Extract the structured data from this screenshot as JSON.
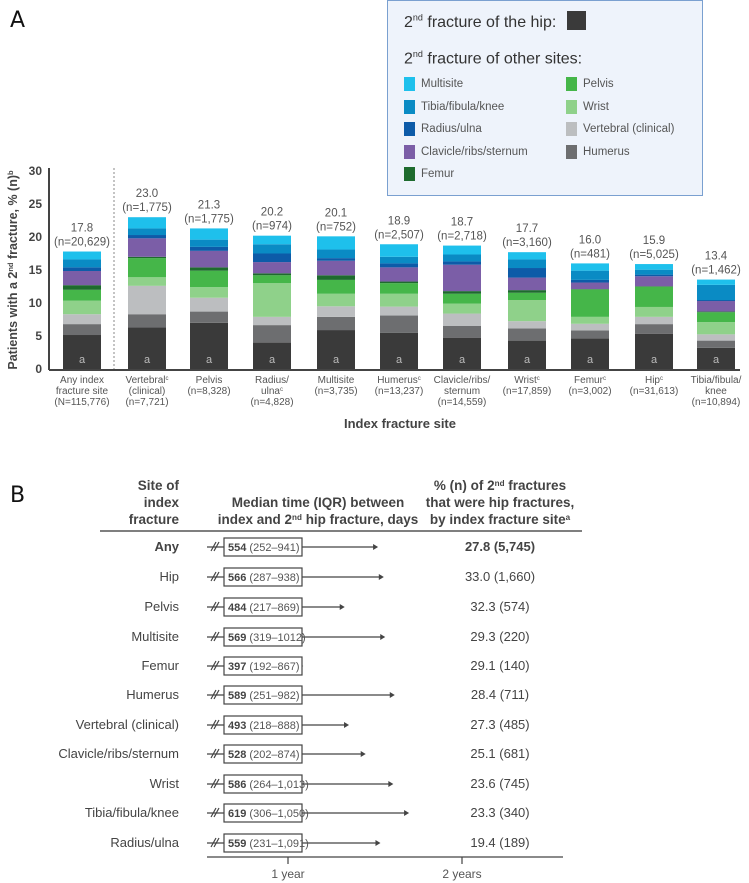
{
  "panel_a_letter": "A",
  "panel_b_letter": "B",
  "legend": {
    "hip_title_pre": "2",
    "hip_title_sup": "nd",
    "hip_title_post": " fracture of the hip:",
    "other_title_pre": "2",
    "other_title_sup": "nd",
    "other_title_post": " fracture of other sites:",
    "items": [
      {
        "label": "Multisite",
        "color": "#1ec0ec"
      },
      {
        "label": "Tibia/fibula/knee",
        "color": "#0a8bc4"
      },
      {
        "label": "Radius/ulna",
        "color": "#0d5ba8"
      },
      {
        "label": "Clavicle/ribs/sternum",
        "color": "#7b5ea7"
      },
      {
        "label": "Femur",
        "color": "#1e6b2e"
      },
      {
        "label": "Pelvis",
        "color": "#45b649"
      },
      {
        "label": "Wrist",
        "color": "#8fd18a"
      },
      {
        "label": "Vertebral (clinical)",
        "color": "#bcbec0"
      },
      {
        "label": "Humerus",
        "color": "#6d6e70"
      }
    ],
    "hip_color": "#3a3a3a"
  },
  "chart_data": [
    {
      "type": "bar",
      "stacked": true,
      "title": "",
      "xlabel": "Index fracture site",
      "ylabel_pre": "Patients with a 2",
      "ylabel_sup": "nd",
      "ylabel_post": " fracture, % (n)",
      "ylabel_sup2": "b",
      "ylim": [
        0,
        30
      ],
      "yticks": [
        0,
        5,
        10,
        15,
        20,
        25,
        30
      ],
      "hip_segment_marker": "a",
      "categories": [
        {
          "lines": [
            "Any index",
            "fracture site",
            "(N=115,776)"
          ],
          "sup": "",
          "sup_line": 0
        },
        {
          "lines": [
            "Vertebral",
            "(clinical)",
            "(n=7,721)"
          ],
          "sup": "c",
          "sup_line": 0
        },
        {
          "lines": [
            "Pelvis",
            "(n=8,328)"
          ],
          "sup": "",
          "sup_line": 0
        },
        {
          "lines": [
            "Radius/",
            "ulna",
            "(n=4,828)"
          ],
          "sup": "c",
          "sup_line": 1
        },
        {
          "lines": [
            "Multisite",
            "(n=3,735)"
          ],
          "sup": "",
          "sup_line": 0
        },
        {
          "lines": [
            "Humerus",
            "(n=13,237)"
          ],
          "sup": "c",
          "sup_line": 0
        },
        {
          "lines": [
            "Clavicle/ribs/",
            "sternum",
            "(n=14,559)"
          ],
          "sup": "",
          "sup_line": 0
        },
        {
          "lines": [
            "Wrist",
            "(n=17,859)"
          ],
          "sup": "c",
          "sup_line": 0
        },
        {
          "lines": [
            "Femur",
            "(n=3,002)"
          ],
          "sup": "c",
          "sup_line": 0
        },
        {
          "lines": [
            "Hip",
            "(n=31,613)"
          ],
          "sup": "c",
          "sup_line": 0
        },
        {
          "lines": [
            "Tibia/fibula/",
            "knee",
            "(n=10,894)"
          ],
          "sup": "",
          "sup_line": 0
        }
      ],
      "totals": [
        "17.8",
        "23.0",
        "21.3",
        "20.2",
        "20.1",
        "18.9",
        "18.7",
        "17.7",
        "16.0",
        "15.9",
        "13.4"
      ],
      "totals_n": [
        "(n=20,629)",
        "(n=1,775)",
        "(n=1,775)",
        "(n=974)",
        "(n=752)",
        "(n=2,507)",
        "(n=2,718)",
        "(n=3,160)",
        "(n=481)",
        "(n=5,025)",
        "(n=1,462)"
      ],
      "series": [
        {
          "name": "Hip",
          "color": "#3a3a3a",
          "values": [
            5.15,
            6.3,
            7.0,
            4.0,
            5.9,
            5.5,
            4.75,
            4.3,
            4.65,
            5.35,
            3.2
          ]
        },
        {
          "name": "Humerus",
          "color": "#6d6e70",
          "values": [
            1.65,
            2.0,
            1.7,
            2.65,
            2.0,
            2.6,
            1.8,
            1.85,
            1.2,
            1.45,
            1.1
          ]
        },
        {
          "name": "Vertebral (clinical)",
          "color": "#bcbec0",
          "values": [
            1.5,
            4.3,
            2.1,
            1.25,
            1.6,
            1.35,
            1.85,
            1.1,
            1.0,
            1.1,
            0.95
          ]
        },
        {
          "name": "Wrist",
          "color": "#8fd18a",
          "values": [
            2.05,
            1.3,
            1.6,
            5.1,
            1.9,
            1.95,
            1.5,
            3.2,
            1.05,
            1.5,
            1.85
          ]
        },
        {
          "name": "Pelvis",
          "color": "#45b649",
          "values": [
            1.65,
            2.9,
            2.5,
            1.2,
            2.1,
            1.6,
            1.5,
            1.1,
            4.15,
            3.05,
            1.5
          ]
        },
        {
          "name": "Femur",
          "color": "#1e6b2e",
          "values": [
            0.7,
            0.2,
            0.5,
            0.3,
            0.7,
            0.25,
            0.4,
            0.4,
            0.05,
            0.1,
            0.1
          ]
        },
        {
          "name": "Clavicle/ribs/sternum",
          "color": "#7b5ea7",
          "values": [
            2.15,
            2.8,
            2.5,
            1.7,
            2.2,
            2.15,
            4.0,
            1.9,
            1.0,
            1.5,
            1.6
          ]
        },
        {
          "name": "Radius/ulna",
          "color": "#0d5ba8",
          "values": [
            0.55,
            0.5,
            0.6,
            1.3,
            0.4,
            0.6,
            0.5,
            1.45,
            0.4,
            0.25,
            0.15
          ]
        },
        {
          "name": "Tibia/fibula/knee",
          "color": "#0a8bc4",
          "values": [
            1.2,
            1.0,
            1.1,
            1.4,
            1.3,
            1.0,
            1.05,
            1.3,
            1.4,
            0.75,
            2.3
          ]
        },
        {
          "name": "Multisite",
          "color": "#1ec0ec",
          "values": [
            1.2,
            1.7,
            1.7,
            1.3,
            2.0,
            1.9,
            1.35,
            1.1,
            1.1,
            0.85,
            0.8
          ]
        }
      ]
    },
    {
      "type": "table",
      "headers": {
        "site": [
          "Site of",
          "index",
          "fracture"
        ],
        "median": [
          "Median time (IQR) between",
          "index and 2|nd| hip fracture, days"
        ],
        "pct": [
          "% (n) of 2|nd| fractures",
          "that were hip fractures,",
          "by index fracture site|a|"
        ]
      },
      "axis_ticks": [
        {
          "label": "1 year",
          "days": 365
        },
        {
          "label": "2 years",
          "days": 730
        }
      ],
      "rows": [
        {
          "site": "Any",
          "median": 554,
          "median_label": "554",
          "iqr": "(252–941)",
          "pct": "27.8 (5,745)",
          "bold": true
        },
        {
          "site": "Hip",
          "median": 566,
          "median_label": "566",
          "iqr": "(287–938)",
          "pct": "33.0 (1,660)",
          "bold": false
        },
        {
          "site": "Pelvis",
          "median": 484,
          "median_label": "484",
          "iqr": "(217–869)",
          "pct": "32.3 (574)",
          "bold": false
        },
        {
          "site": "Multisite",
          "median": 569,
          "median_label": "569",
          "iqr": "(319–1012)",
          "pct": "29.3 (220)",
          "bold": false
        },
        {
          "site": "Femur",
          "median": 397,
          "median_label": "397",
          "iqr": "(192–867)",
          "pct": "29.1 (140)",
          "bold": false
        },
        {
          "site": "Humerus",
          "median": 589,
          "median_label": "589",
          "iqr": "(251–982)",
          "pct": "28.4 (711)",
          "bold": false
        },
        {
          "site": "Vertebral (clinical)",
          "median": 493,
          "median_label": "493",
          "iqr": "(218–888)",
          "pct": "27.3 (485)",
          "bold": false
        },
        {
          "site": "Clavicle/ribs/sternum",
          "median": 528,
          "median_label": "528",
          "iqr": "(202–874)",
          "pct": "25.1 (681)",
          "bold": false
        },
        {
          "site": "Wrist",
          "median": 586,
          "median_label": "586",
          "iqr": "(264–1,013)",
          "pct": "23.6 (745)",
          "bold": false
        },
        {
          "site": "Tibia/fibula/knee",
          "median": 619,
          "median_label": "619",
          "iqr": "(306–1,050)",
          "pct": "23.3 (340)",
          "bold": false
        },
        {
          "site": "Radius/ulna",
          "median": 559,
          "median_label": "559",
          "iqr": "(231–1,091)",
          "pct": "19.4 (189)",
          "bold": false
        }
      ]
    }
  ]
}
